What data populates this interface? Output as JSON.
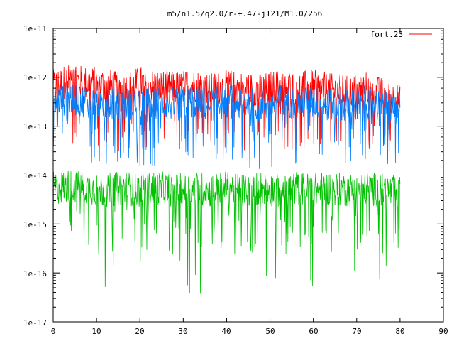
{
  "chart_data": {
    "type": "line",
    "title": "m5/n1.5/q2.0/r-+.47-j121/M1.0/256",
    "xlabel": "",
    "ylabel": "",
    "xlim": [
      0,
      90
    ],
    "ylim": [
      1e-17,
      1e-11
    ],
    "yscale": "log",
    "x_ticks": [
      "0",
      "10",
      "20",
      "30",
      "40",
      "50",
      "60",
      "70",
      "80",
      "90"
    ],
    "y_ticks": [
      "1e-11",
      "1e-12",
      "1e-13",
      "1e-14",
      "1e-15",
      "1e-16",
      "1e-17"
    ],
    "grid": false,
    "legend_position": "top-right",
    "legend": [
      "fort.23"
    ],
    "series": [
      {
        "name": "fort.23",
        "color": "#ff0000",
        "x": [
          0,
          4,
          8,
          12,
          16,
          20,
          24,
          28,
          32,
          36,
          40,
          44,
          48,
          52,
          56,
          60,
          64,
          68,
          72,
          76,
          80
        ],
        "y": [
          6e-13,
          8e-13,
          7e-13,
          6.5e-13,
          5e-13,
          7e-13,
          6e-13,
          5.5e-13,
          6.5e-13,
          5e-13,
          6e-13,
          5.5e-13,
          5e-13,
          6e-13,
          5.5e-13,
          6e-13,
          5e-13,
          4.5e-13,
          5.5e-13,
          4e-13,
          3e-13
        ],
        "range_low": 3e-14,
        "range_high": 1.8e-12
      },
      {
        "color": "#0080ff",
        "x": [
          0,
          4,
          8,
          12,
          16,
          20,
          24,
          28,
          32,
          36,
          40,
          44,
          48,
          52,
          56,
          60,
          64,
          68,
          72,
          76,
          80
        ],
        "y": [
          3e-13,
          3.5e-13,
          3e-13,
          2.8e-13,
          2.5e-13,
          3e-13,
          2.8e-13,
          2.5e-13,
          3e-13,
          2.5e-13,
          3e-13,
          2.8e-13,
          2.5e-13,
          3e-13,
          2.8e-13,
          3e-13,
          2.5e-13,
          2.5e-13,
          2.8e-13,
          2.5e-13,
          2e-13
        ],
        "range_low": 1.5e-14,
        "range_high": 8e-13
      },
      {
        "color": "#00c000",
        "x": [
          0,
          4,
          8,
          12,
          16,
          20,
          24,
          28,
          32,
          36,
          40,
          44,
          48,
          52,
          56,
          60,
          64,
          68,
          72,
          76,
          80
        ],
        "y": [
          5e-15,
          5.5e-15,
          5e-15,
          4.5e-15,
          5e-15,
          4.5e-15,
          5e-15,
          4.5e-15,
          5e-15,
          4.5e-15,
          5e-15,
          4.5e-15,
          5e-15,
          4.5e-15,
          5e-15,
          4.5e-15,
          5e-15,
          4.5e-15,
          5e-15,
          4.5e-15,
          4e-15
        ],
        "range_low": 2.5e-17,
        "range_high": 1.3e-14
      }
    ]
  }
}
